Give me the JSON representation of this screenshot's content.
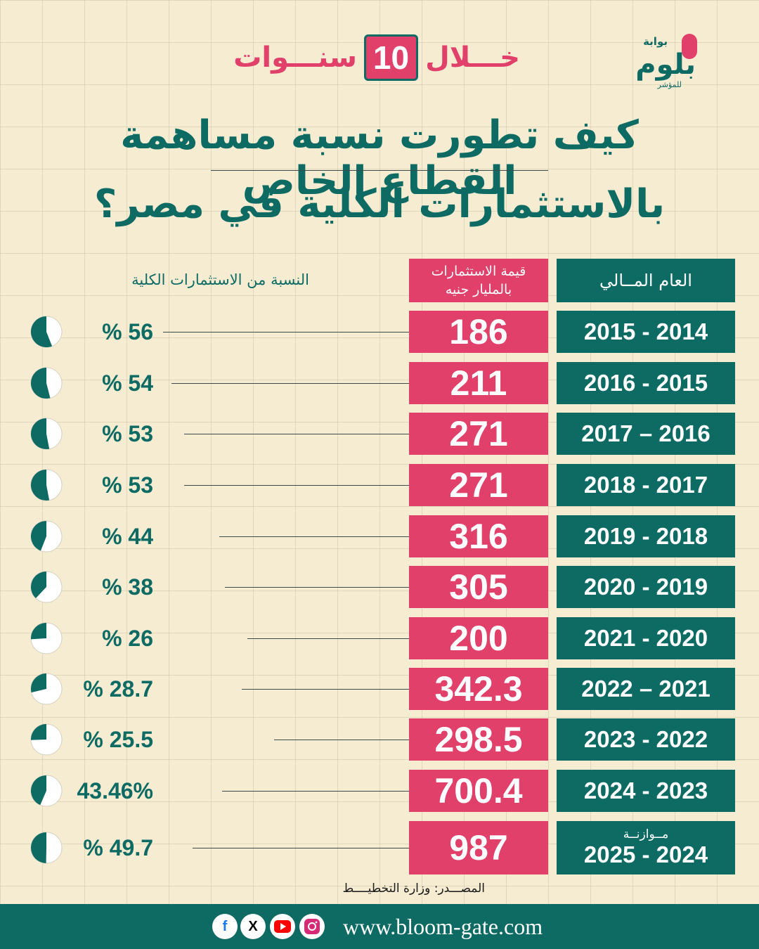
{
  "brand": {
    "small": "بوابة",
    "main": "بلوم",
    "sub": "للمؤشر"
  },
  "banner": {
    "prefix": "خـــلال",
    "number": "10",
    "suffix": "سنـــوات"
  },
  "title": {
    "line1": "كيف تطورت نسبة مساهمة القطاع الخاص",
    "line2": "بالاستثمارات الكلية في مصر؟"
  },
  "headers": {
    "year": "العام المــالي",
    "value_line1": "قيمة الاستثمارات",
    "value_line2": "بالمليار جنيه",
    "percent": "النسبة من الاستثمارات الكلية"
  },
  "chart_data": {
    "type": "table",
    "title": "كيف تطورت نسبة مساهمة القطاع الخاص بالاستثمارات الكلية في مصر؟",
    "columns": [
      "العام المــالي",
      "قيمة الاستثمارات بالمليار جنيه",
      "النسبة من الاستثمارات الكلية"
    ],
    "rows": [
      {
        "year": "2015 - 2014",
        "value": "186",
        "value_num": 186,
        "pct_label": "% 56",
        "pct": 56
      },
      {
        "year": "2016 - 2015",
        "value": "211",
        "value_num": 211,
        "pct_label": "% 54",
        "pct": 54
      },
      {
        "year": "2017 – 2016",
        "value": "271",
        "value_num": 271,
        "pct_label": "% 53",
        "pct": 53
      },
      {
        "year": "2018 - 2017",
        "value": "271",
        "value_num": 271,
        "pct_label": "% 53",
        "pct": 53
      },
      {
        "year": "2019 - 2018",
        "value": "316",
        "value_num": 316,
        "pct_label": "% 44",
        "pct": 44
      },
      {
        "year": "2020 - 2019",
        "value": "305",
        "value_num": 305,
        "pct_label": "% 38",
        "pct": 38
      },
      {
        "year": "2021 - 2020",
        "value": "200",
        "value_num": 200,
        "pct_label": "% 26",
        "pct": 26
      },
      {
        "year": "2022 – 2021",
        "value": "342.3",
        "value_num": 342.3,
        "pct_label": "% 28.7",
        "pct": 28.7
      },
      {
        "year": "2023 - 2022",
        "value": "298.5",
        "value_num": 298.5,
        "pct_label": "% 25.5",
        "pct": 25.5
      },
      {
        "year": "2024 - 2023",
        "value": "700.4",
        "value_num": 700.4,
        "pct_label": "43.46%",
        "pct": 43.46
      },
      {
        "year": "2025 - 2024",
        "year_note": "مــوازنــة",
        "value": "987",
        "value_num": 987,
        "pct_label": "% 49.7",
        "pct": 49.7
      }
    ]
  },
  "source": "المصـــدر: وزارة التخطيــــط",
  "footer": {
    "website": "www.bloom-gate.com"
  },
  "colors": {
    "teal": "#0e6b64",
    "pink": "#e0406a",
    "background": "#f5ecd2"
  },
  "icons": [
    "facebook-icon",
    "x-icon",
    "youtube-icon",
    "instagram-icon"
  ]
}
